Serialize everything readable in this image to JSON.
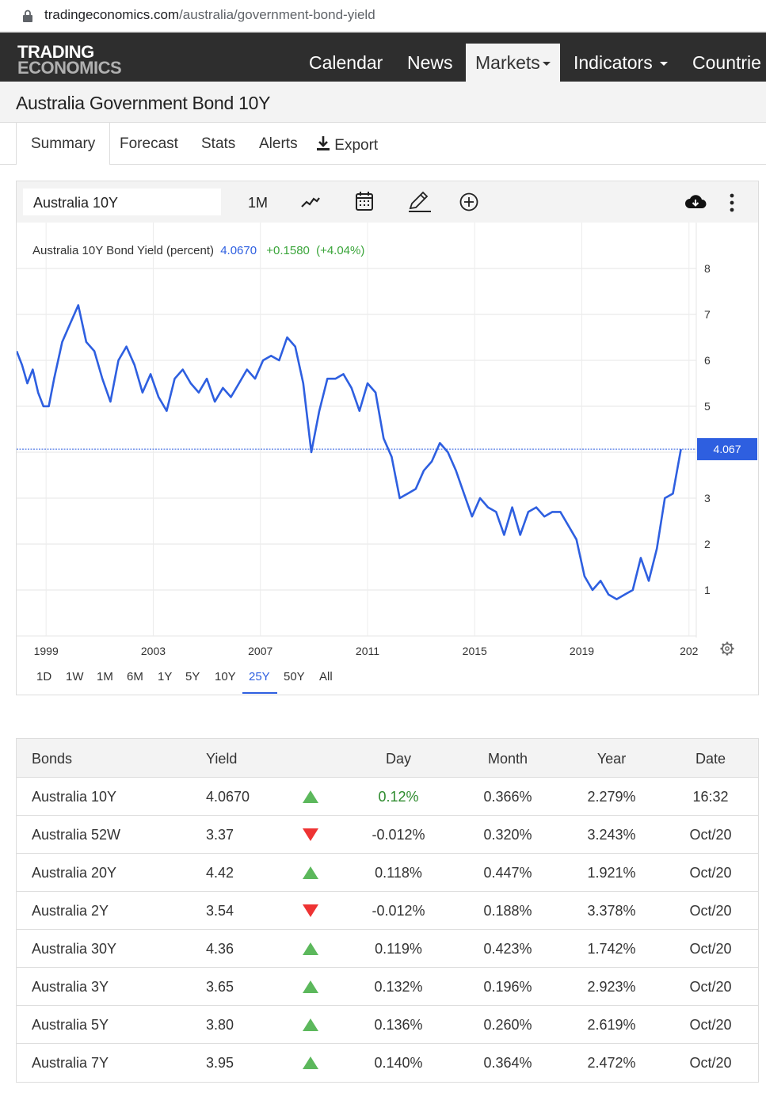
{
  "browser": {
    "url_host": "tradingeconomics.com",
    "url_path": "/australia/government-bond-yield"
  },
  "logo": {
    "line1": "TRADING",
    "line2": "ECONOMICS"
  },
  "nav": {
    "calendar": "Calendar",
    "news": "News",
    "markets": "Markets",
    "indicators": "Indicators",
    "countries": "Countrie"
  },
  "page": {
    "title": "Australia Government Bond 10Y"
  },
  "subtabs": {
    "summary": "Summary",
    "forecast": "Forecast",
    "stats": "Stats",
    "alerts": "Alerts",
    "export": "Export"
  },
  "toolbar": {
    "symbol": "Australia 10Y",
    "interval": "1M"
  },
  "legend": {
    "label": "Australia 10Y Bond Yield (percent)",
    "value": "4.0670",
    "change": "+0.1580",
    "change_pct": "(+4.04%)"
  },
  "price_tag": "4.067",
  "ranges": {
    "r1d": "1D",
    "r1w": "1W",
    "r1m": "1M",
    "r6m": "6M",
    "r1y": "1Y",
    "r5y": "5Y",
    "r10y": "10Y",
    "r25y": "25Y",
    "r50y": "50Y",
    "rall": "All"
  },
  "colors": {
    "line": "#2e5fe0",
    "up": "#5cb85c",
    "down": "#e33333",
    "nav_bg": "#2e2e2e"
  },
  "chart_data": {
    "type": "line",
    "x_tick_labels": [
      "1999",
      "2003",
      "2007",
      "2011",
      "2015",
      "2019",
      "202"
    ],
    "y_tick_labels": [
      "1",
      "2",
      "3",
      "4",
      "5",
      "6",
      "7",
      "8"
    ],
    "ylim": [
      0.0,
      8.0
    ],
    "xlim": [
      1997.9,
      2022.8
    ],
    "grid": true,
    "series": [
      {
        "x": [
          1997.9,
          1998.1,
          1998.3,
          1998.5,
          1998.7,
          1998.9,
          1999.1,
          1999.3,
          1999.6,
          1999.9,
          2000.2,
          2000.5,
          2000.8,
          2001.1,
          2001.4,
          2001.7,
          2002.0,
          2002.3,
          2002.6,
          2002.9,
          2003.2,
          2003.5,
          2003.8,
          2004.1,
          2004.4,
          2004.7,
          2005.0,
          2005.3,
          2005.6,
          2005.9,
          2006.2,
          2006.5,
          2006.8,
          2007.1,
          2007.4,
          2007.7,
          2008.0,
          2008.3,
          2008.6,
          2008.9,
          2009.2,
          2009.5,
          2009.8,
          2010.1,
          2010.4,
          2010.7,
          2011.0,
          2011.3,
          2011.6,
          2011.9,
          2012.2,
          2012.5,
          2012.8,
          2013.1,
          2013.4,
          2013.7,
          2014.0,
          2014.3,
          2014.6,
          2014.9,
          2015.2,
          2015.5,
          2015.8,
          2016.1,
          2016.4,
          2016.7,
          2017.0,
          2017.3,
          2017.6,
          2017.9,
          2018.2,
          2018.5,
          2018.8,
          2019.1,
          2019.4,
          2019.7,
          2020.0,
          2020.3,
          2020.6,
          2020.9,
          2021.2,
          2021.5,
          2021.8,
          2022.1,
          2022.4,
          2022.7
        ],
        "y": [
          6.2,
          5.9,
          5.5,
          5.8,
          5.3,
          5.0,
          5.0,
          5.6,
          6.4,
          6.8,
          7.2,
          6.4,
          6.2,
          5.6,
          5.1,
          6.0,
          6.3,
          5.9,
          5.3,
          5.7,
          5.2,
          4.9,
          5.6,
          5.8,
          5.5,
          5.3,
          5.6,
          5.1,
          5.4,
          5.2,
          5.5,
          5.8,
          5.6,
          6.0,
          6.1,
          6.0,
          6.5,
          6.3,
          5.5,
          4.0,
          4.9,
          5.6,
          5.6,
          5.7,
          5.4,
          4.9,
          5.5,
          5.3,
          4.3,
          3.9,
          3.0,
          3.1,
          3.2,
          3.6,
          3.8,
          4.2,
          4.0,
          3.6,
          3.1,
          2.6,
          3.0,
          2.8,
          2.7,
          2.2,
          2.8,
          2.2,
          2.7,
          2.8,
          2.6,
          2.7,
          2.7,
          2.4,
          2.1,
          1.3,
          1.0,
          1.2,
          0.9,
          0.8,
          0.9,
          1.0,
          1.7,
          1.2,
          1.9,
          3.0,
          3.1,
          4.067
        ]
      }
    ]
  },
  "table": {
    "headers": {
      "bonds": "Bonds",
      "yield": "Yield",
      "day": "Day",
      "month": "Month",
      "year": "Year",
      "date": "Date"
    },
    "rows": [
      {
        "name": "Australia 10Y",
        "yield": "4.0670",
        "dir": "up",
        "day": "0.12%",
        "month": "0.366%",
        "year": "2.279%",
        "date": "16:32"
      },
      {
        "name": "Australia 52W",
        "yield": "3.37",
        "dir": "down",
        "day": "-0.012%",
        "month": "0.320%",
        "year": "3.243%",
        "date": "Oct/20"
      },
      {
        "name": "Australia 20Y",
        "yield": "4.42",
        "dir": "up",
        "day": "0.118%",
        "month": "0.447%",
        "year": "1.921%",
        "date": "Oct/20"
      },
      {
        "name": "Australia 2Y",
        "yield": "3.54",
        "dir": "down",
        "day": "-0.012%",
        "month": "0.188%",
        "year": "3.378%",
        "date": "Oct/20"
      },
      {
        "name": "Australia 30Y",
        "yield": "4.36",
        "dir": "up",
        "day": "0.119%",
        "month": "0.423%",
        "year": "1.742%",
        "date": "Oct/20"
      },
      {
        "name": "Australia 3Y",
        "yield": "3.65",
        "dir": "up",
        "day": "0.132%",
        "month": "0.196%",
        "year": "2.923%",
        "date": "Oct/20"
      },
      {
        "name": "Australia 5Y",
        "yield": "3.80",
        "dir": "up",
        "day": "0.136%",
        "month": "0.260%",
        "year": "2.619%",
        "date": "Oct/20"
      },
      {
        "name": "Australia 7Y",
        "yield": "3.95",
        "dir": "up",
        "day": "0.140%",
        "month": "0.364%",
        "year": "2.472%",
        "date": "Oct/20"
      }
    ]
  }
}
